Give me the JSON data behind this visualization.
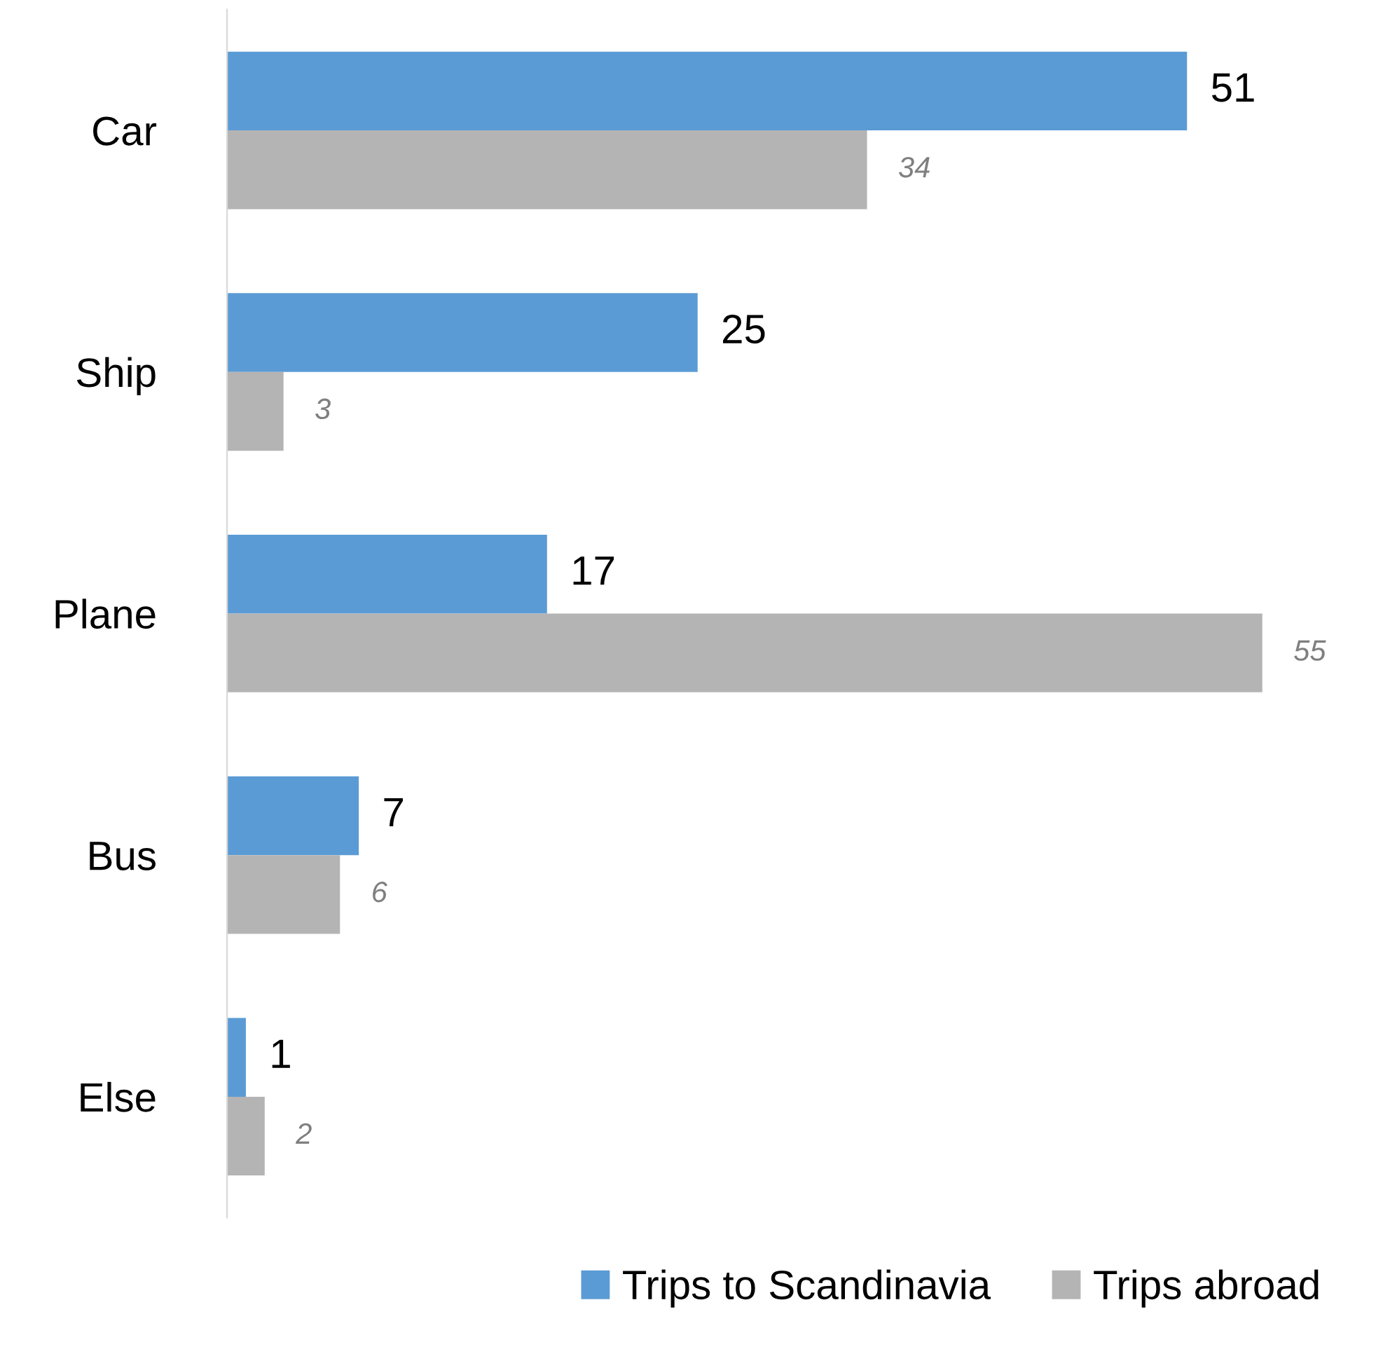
{
  "chart_data": {
    "type": "bar",
    "orientation": "horizontal",
    "categories": [
      "Car",
      "Ship",
      "Plane",
      "Bus",
      "Else"
    ],
    "series": [
      {
        "name": "Trips to Scandinavia",
        "color": "#5b9bd5",
        "values": [
          51,
          25,
          17,
          7,
          1
        ]
      },
      {
        "name": "Trips abroad",
        "color": "#b4b4b4",
        "values": [
          34,
          3,
          55,
          6,
          2
        ]
      }
    ],
    "data_labels": true,
    "legend": "bottom",
    "grid": false
  }
}
